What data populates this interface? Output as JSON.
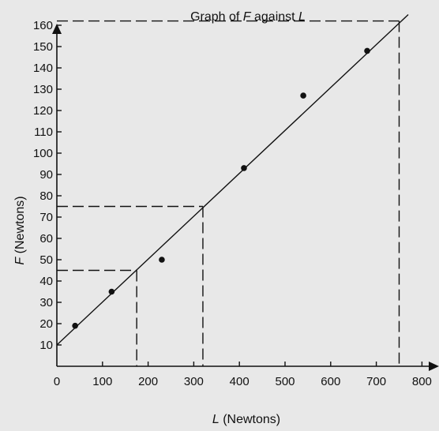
{
  "chart_data": {
    "type": "scatter",
    "title": {
      "prefix": "Graph of ",
      "y_symbol": "F",
      "middle": " against ",
      "x_symbol": "L"
    },
    "xlabel": {
      "symbol": "L",
      "text": " (Newtons)"
    },
    "ylabel": {
      "symbol": "F",
      "text": " (Newtons)"
    },
    "xlim": [
      0,
      800
    ],
    "ylim": [
      0,
      165
    ],
    "x_ticks": [
      "0",
      "100",
      "200",
      "300",
      "400",
      "500",
      "600",
      "700",
      "800"
    ],
    "y_ticks": [
      "10",
      "20",
      "30",
      "40",
      "50",
      "60",
      "70",
      "80",
      "90",
      "100",
      "110",
      "120",
      "130",
      "140",
      "150",
      "160"
    ],
    "grid": false,
    "series": [
      {
        "points": [
          {
            "x": 40,
            "y": 19
          },
          {
            "x": 120,
            "y": 35
          },
          {
            "x": 230,
            "y": 50
          },
          {
            "x": 410,
            "y": 93
          },
          {
            "x": 540,
            "y": 127
          },
          {
            "x": 680,
            "y": 148
          }
        ]
      }
    ],
    "best_fit_line": {
      "from": [
        0,
        10
      ],
      "to": [
        770,
        165
      ]
    },
    "guides": [
      {
        "x": 175,
        "y": 45
      },
      {
        "x": 320,
        "y": 75
      },
      {
        "x": 750,
        "y": 162
      }
    ],
    "colors": {
      "background": "#e8e8e8",
      "ink": "#111111"
    }
  }
}
